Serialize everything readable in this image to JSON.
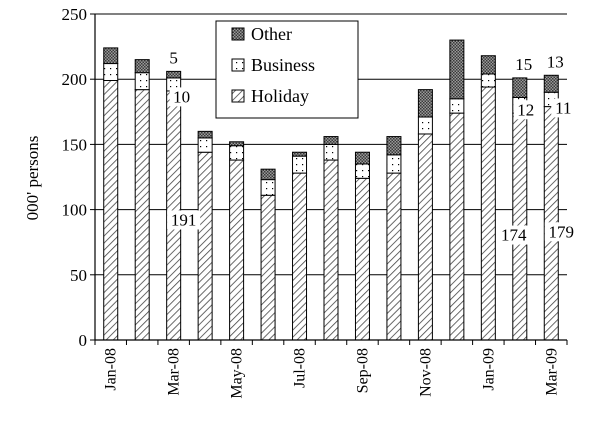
{
  "chart_data": {
    "type": "bar",
    "stacked": true,
    "title": "",
    "xlabel": "",
    "ylabel": "000' persons",
    "ylim": [
      0,
      250
    ],
    "yticks": [
      0,
      50,
      100,
      150,
      200,
      250
    ],
    "grid": true,
    "legend_position": "top-center",
    "categories": [
      "Jan-08",
      "Feb-08",
      "Mar-08",
      "Apr-08",
      "May-08",
      "Jun-08",
      "Jul-08",
      "Aug-08",
      "Sep-08",
      "Oct-08",
      "Nov-08",
      "Dec-08",
      "Jan-09",
      "Feb-09",
      "Mar-09"
    ],
    "xtick_labels": [
      "Jan-08",
      "",
      "Mar-08",
      "",
      "May-08",
      "",
      "Jul-08",
      "",
      "Sep-08",
      "",
      "Nov-08",
      "",
      "Jan-09",
      "",
      "Mar-09"
    ],
    "series": [
      {
        "name": "Holiday",
        "values": [
          199,
          192,
          191,
          144,
          138,
          111,
          128,
          138,
          124,
          128,
          158,
          174,
          194,
          174,
          179
        ],
        "pattern": "hatch"
      },
      {
        "name": "Business",
        "values": [
          13,
          13,
          10,
          11,
          11,
          12,
          13,
          12,
          11,
          14,
          13,
          11,
          10,
          12,
          11
        ],
        "pattern": "dots"
      },
      {
        "name": "Other",
        "values": [
          12,
          10,
          5,
          5,
          3,
          8,
          3,
          6,
          9,
          14,
          21,
          45,
          14,
          15,
          13
        ],
        "pattern": "cross"
      }
    ],
    "annotations": [
      {
        "text": "5",
        "series": "Other",
        "index": 2
      },
      {
        "text": "10",
        "series": "Business",
        "index": 2
      },
      {
        "text": "191",
        "series": "Holiday",
        "index": 2
      },
      {
        "text": "15",
        "series": "Other",
        "index": 13
      },
      {
        "text": "12",
        "series": "Business",
        "index": 13
      },
      {
        "text": "174",
        "series": "Holiday",
        "index": 13
      },
      {
        "text": "13",
        "series": "Other",
        "index": 14
      },
      {
        "text": "11",
        "series": "Business",
        "index": 14
      },
      {
        "text": "179",
        "series": "Holiday",
        "index": 14
      }
    ],
    "colors": {
      "bar_edge": "#000000",
      "cross_fill": "#555555",
      "hatch_line": "#444444",
      "gridline": "#000000"
    }
  }
}
